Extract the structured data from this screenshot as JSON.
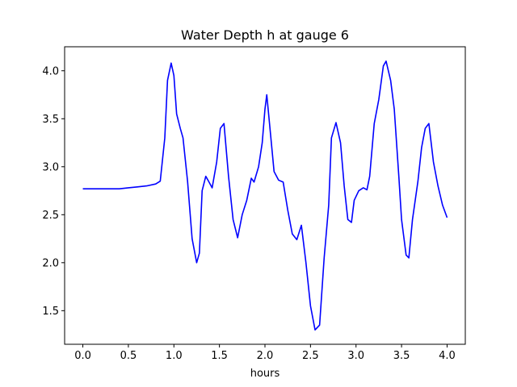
{
  "chart_data": {
    "type": "line",
    "title": "Water Depth h at gauge 6",
    "xlabel": "hours",
    "ylabel": "",
    "xlim": [
      -0.2,
      4.2
    ],
    "ylim": [
      1.15,
      4.25
    ],
    "xticks": [
      0.0,
      0.5,
      1.0,
      1.5,
      2.0,
      2.5,
      3.0,
      3.5,
      4.0
    ],
    "xtick_labels": [
      "0.0",
      "0.5",
      "1.0",
      "1.5",
      "2.0",
      "2.5",
      "3.0",
      "3.5",
      "4.0"
    ],
    "yticks": [
      1.5,
      2.0,
      2.5,
      3.0,
      3.5,
      4.0
    ],
    "ytick_labels": [
      "1.5",
      "2.0",
      "2.5",
      "3.0",
      "3.5",
      "4.0"
    ],
    "grid": false,
    "series": [
      {
        "color": "#0000ff",
        "points": [
          [
            0.0,
            2.77
          ],
          [
            0.2,
            2.77
          ],
          [
            0.4,
            2.77
          ],
          [
            0.5,
            2.78
          ],
          [
            0.6,
            2.79
          ],
          [
            0.7,
            2.8
          ],
          [
            0.8,
            2.82
          ],
          [
            0.85,
            2.85
          ],
          [
            0.9,
            3.3
          ],
          [
            0.93,
            3.9
          ],
          [
            0.97,
            4.08
          ],
          [
            1.0,
            3.95
          ],
          [
            1.03,
            3.55
          ],
          [
            1.07,
            3.4
          ],
          [
            1.1,
            3.3
          ],
          [
            1.15,
            2.85
          ],
          [
            1.2,
            2.25
          ],
          [
            1.25,
            2.0
          ],
          [
            1.28,
            2.1
          ],
          [
            1.31,
            2.75
          ],
          [
            1.35,
            2.9
          ],
          [
            1.38,
            2.85
          ],
          [
            1.42,
            2.78
          ],
          [
            1.47,
            3.05
          ],
          [
            1.51,
            3.4
          ],
          [
            1.55,
            3.45
          ],
          [
            1.6,
            2.9
          ],
          [
            1.65,
            2.45
          ],
          [
            1.7,
            2.26
          ],
          [
            1.75,
            2.5
          ],
          [
            1.8,
            2.65
          ],
          [
            1.85,
            2.88
          ],
          [
            1.88,
            2.84
          ],
          [
            1.93,
            3.0
          ],
          [
            1.97,
            3.25
          ],
          [
            2.0,
            3.6
          ],
          [
            2.02,
            3.75
          ],
          [
            2.05,
            3.45
          ],
          [
            2.1,
            2.95
          ],
          [
            2.15,
            2.86
          ],
          [
            2.2,
            2.84
          ],
          [
            2.25,
            2.55
          ],
          [
            2.3,
            2.3
          ],
          [
            2.35,
            2.24
          ],
          [
            2.4,
            2.39
          ],
          [
            2.45,
            2.0
          ],
          [
            2.5,
            1.55
          ],
          [
            2.55,
            1.3
          ],
          [
            2.6,
            1.35
          ],
          [
            2.65,
            2.05
          ],
          [
            2.7,
            2.6
          ],
          [
            2.73,
            3.3
          ],
          [
            2.78,
            3.46
          ],
          [
            2.83,
            3.25
          ],
          [
            2.87,
            2.8
          ],
          [
            2.91,
            2.45
          ],
          [
            2.95,
            2.42
          ],
          [
            2.98,
            2.65
          ],
          [
            3.03,
            2.75
          ],
          [
            3.08,
            2.78
          ],
          [
            3.12,
            2.76
          ],
          [
            3.15,
            2.9
          ],
          [
            3.2,
            3.45
          ],
          [
            3.25,
            3.7
          ],
          [
            3.3,
            4.05
          ],
          [
            3.33,
            4.1
          ],
          [
            3.38,
            3.9
          ],
          [
            3.42,
            3.6
          ],
          [
            3.47,
            2.9
          ],
          [
            3.5,
            2.45
          ],
          [
            3.55,
            2.08
          ],
          [
            3.58,
            2.05
          ],
          [
            3.62,
            2.45
          ],
          [
            3.68,
            2.85
          ],
          [
            3.72,
            3.2
          ],
          [
            3.76,
            3.4
          ],
          [
            3.8,
            3.45
          ],
          [
            3.85,
            3.05
          ],
          [
            3.9,
            2.8
          ],
          [
            3.95,
            2.6
          ],
          [
            4.0,
            2.47
          ]
        ]
      }
    ]
  }
}
